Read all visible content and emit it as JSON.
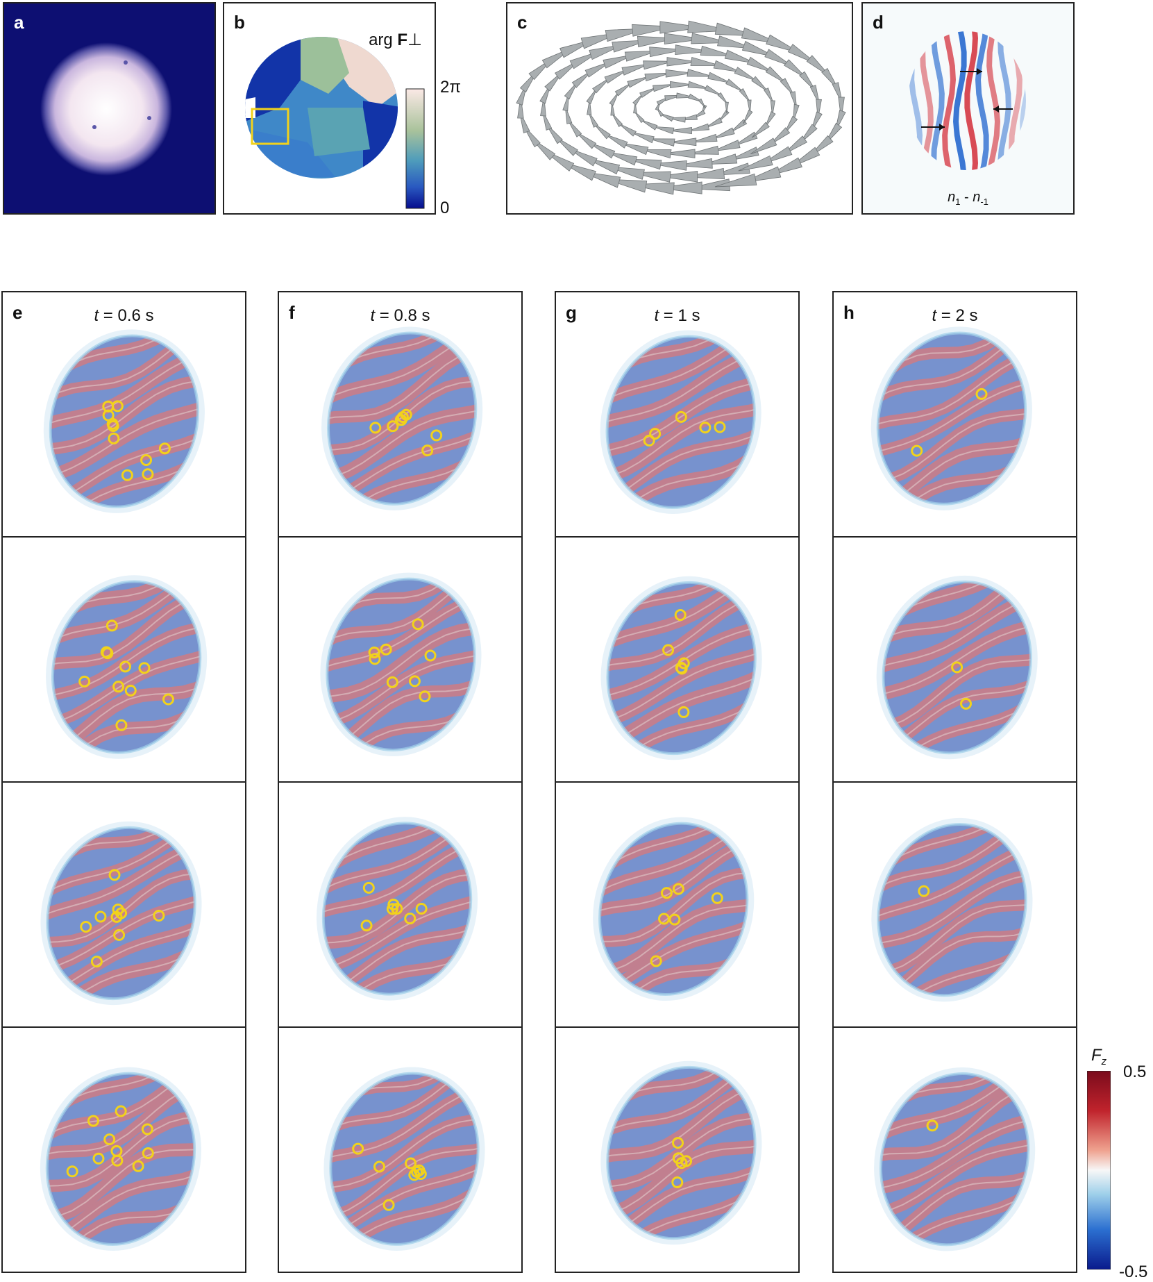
{
  "top_panels": {
    "a": {
      "label": "a"
    },
    "b": {
      "label": "b",
      "annotation_prefix": "arg ",
      "annotation_bold": "F",
      "annotation_suffix": "⊥",
      "cbar_top": "2π",
      "cbar_bottom": "0"
    },
    "c": {
      "label": "c"
    },
    "d": {
      "label": "d",
      "annotation_n1": "n",
      "annotation_sub1": "1",
      "annotation_mid": " - ",
      "annotation_n2": "n",
      "annotation_sub2": "-1"
    }
  },
  "columns": [
    {
      "label": "e",
      "time_var": "t",
      "time_text": " = 0.6 s"
    },
    {
      "label": "f",
      "time_var": "t",
      "time_text": " = 0.8 s"
    },
    {
      "label": "g",
      "time_var": "t",
      "time_text": " = 1 s"
    },
    {
      "label": "h",
      "time_var": "t",
      "time_text": " = 2 s"
    }
  ],
  "fz_colorbar": {
    "title_var": "F",
    "title_sub": "z",
    "max": "0.5",
    "min": "-0.5"
  },
  "colors": {
    "red": "#b2182b",
    "blue": "#1f3fa8",
    "yellow": "#f2d21b",
    "navy": "#0a1070",
    "frame": "#222222"
  }
}
